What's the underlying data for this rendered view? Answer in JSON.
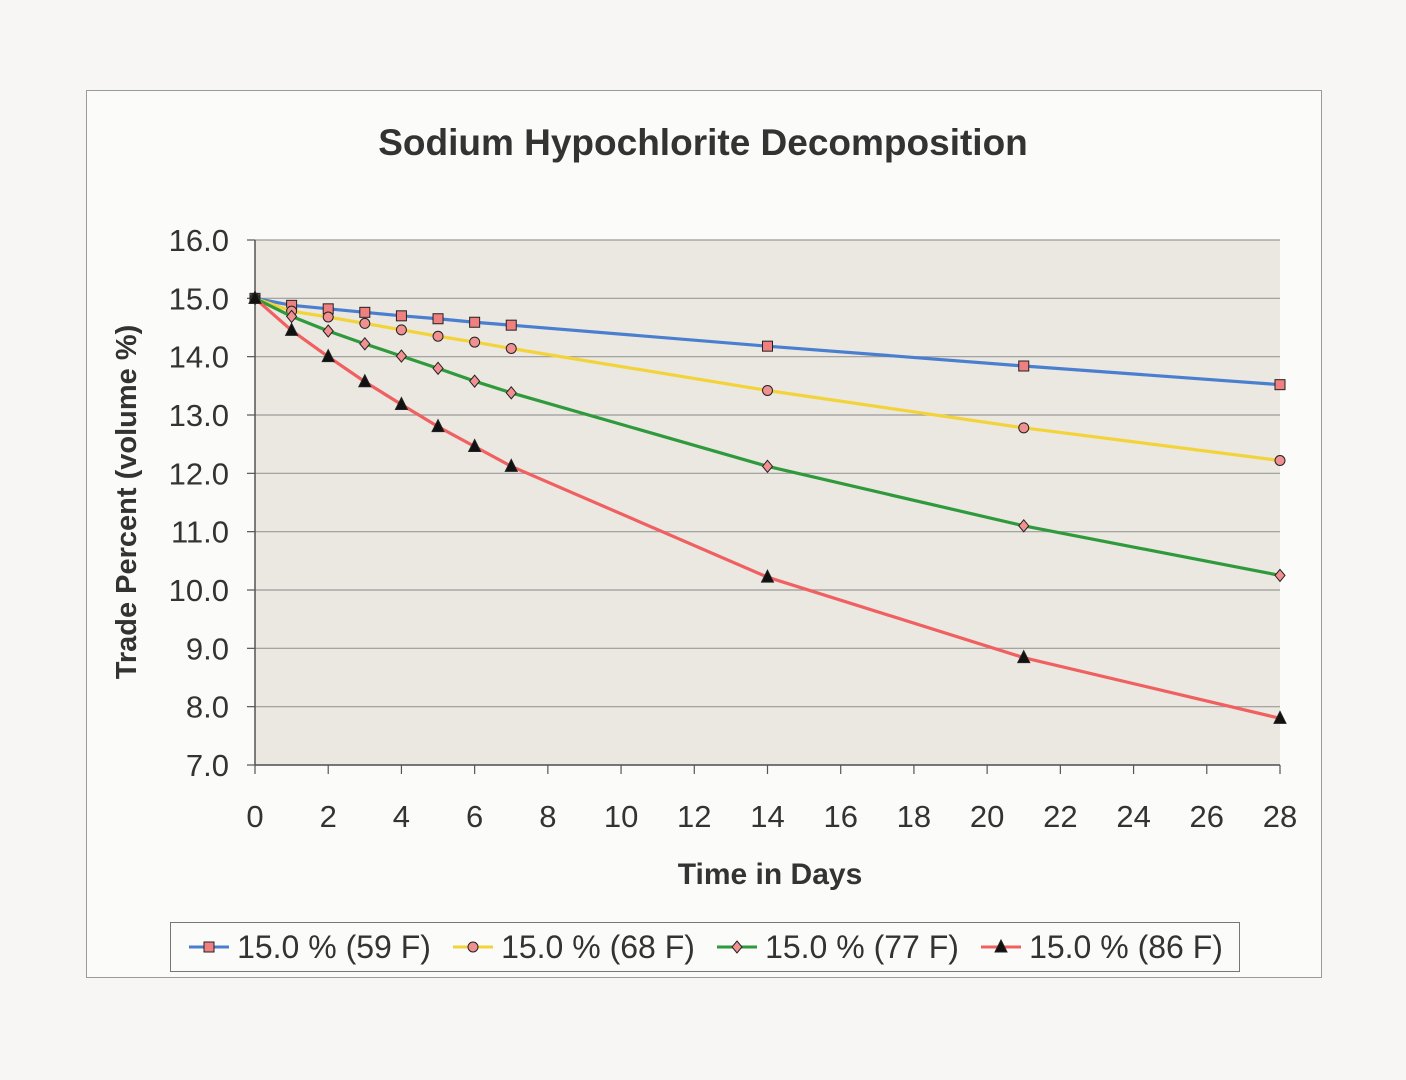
{
  "chart_data": {
    "type": "line",
    "title": "Sodium Hypochlorite Decomposition",
    "xlabel": "Time in Days",
    "ylabel": "Trade Percent (volume %)",
    "xlim": [
      0,
      28
    ],
    "ylim": [
      7.0,
      16.0
    ],
    "x_ticks": [
      "0",
      "2",
      "4",
      "6",
      "8",
      "10",
      "12",
      "14",
      "16",
      "18",
      "20",
      "22",
      "24",
      "26",
      "28"
    ],
    "y_ticks": [
      "7.0",
      "8.0",
      "9.0",
      "10.0",
      "11.0",
      "12.0",
      "13.0",
      "14.0",
      "15.0",
      "16.0"
    ],
    "grid": "horizontal",
    "legend_position": "bottom",
    "series": [
      {
        "name": "15.0 % (59 F)",
        "color": "#4a7fcf",
        "marker": "square",
        "x": [
          0,
          1,
          2,
          3,
          4,
          5,
          6,
          7,
          14,
          21,
          28
        ],
        "values": [
          15.0,
          14.88,
          14.82,
          14.76,
          14.7,
          14.65,
          14.59,
          14.54,
          14.18,
          13.84,
          13.52
        ]
      },
      {
        "name": "15.0 % (68 F)",
        "color": "#f2d43a",
        "marker": "circle",
        "x": [
          0,
          1,
          2,
          3,
          4,
          5,
          6,
          7,
          14,
          21,
          28
        ],
        "values": [
          15.0,
          14.78,
          14.68,
          14.57,
          14.46,
          14.35,
          14.25,
          14.14,
          13.42,
          12.78,
          12.22
        ]
      },
      {
        "name": "15.0 % (77 F)",
        "color": "#2e9a3c",
        "marker": "diamond",
        "x": [
          0,
          1,
          2,
          3,
          4,
          5,
          6,
          7,
          14,
          21,
          28
        ],
        "values": [
          15.0,
          14.69,
          14.44,
          14.22,
          14.01,
          13.8,
          13.58,
          13.38,
          12.12,
          11.1,
          10.25
        ]
      },
      {
        "name": "15.0 % (86 F)",
        "color": "#f06060",
        "marker": "triangle",
        "x": [
          0,
          1,
          2,
          3,
          4,
          5,
          6,
          7,
          14,
          21,
          28
        ],
        "values": [
          15.0,
          14.45,
          14.0,
          13.57,
          13.18,
          12.8,
          12.46,
          12.12,
          10.22,
          8.84,
          7.8
        ]
      }
    ]
  }
}
